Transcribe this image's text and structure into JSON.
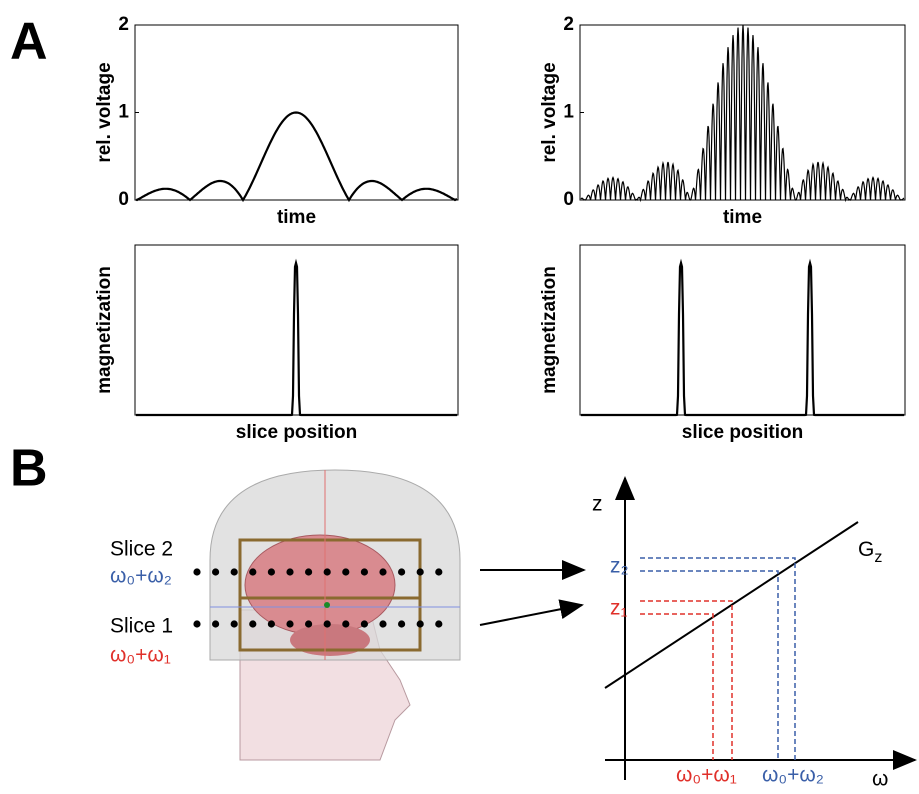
{
  "panel_a": {
    "label": "A",
    "plots": [
      {
        "ylabel": "rel. voltage",
        "xlabel": "time",
        "yticks": [
          0,
          1,
          2
        ]
      },
      {
        "ylabel": "rel. voltage",
        "xlabel": "time",
        "yticks": [
          0,
          1,
          2
        ]
      },
      {
        "ylabel": "magnetization",
        "xlabel": "slice position"
      },
      {
        "ylabel": "magnetization",
        "xlabel": "slice position"
      }
    ]
  },
  "panel_b": {
    "label": "B",
    "slices": [
      {
        "name": "Slice 2",
        "frequency": "ω₀+ω₂"
      },
      {
        "name": "Slice 1",
        "frequency": "ω₀+ω₁"
      }
    ],
    "graph": {
      "y_axis": "z",
      "x_axis": "ω",
      "gradient": {
        "main": "G",
        "sub": "z"
      },
      "z_labels": [
        "z₂",
        "z₁"
      ],
      "omega_labels": [
        "ω₀+ω₁",
        "ω₀+ω₂"
      ]
    }
  }
}
